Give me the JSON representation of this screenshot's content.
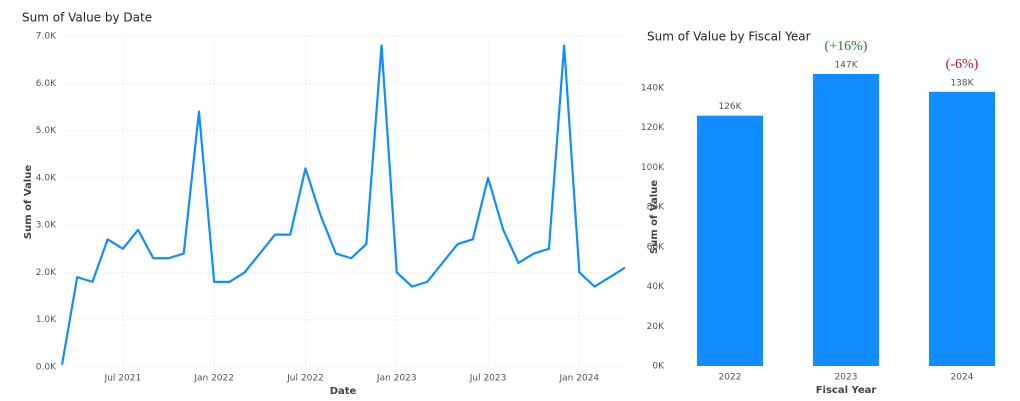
{
  "chart_data": [
    {
      "type": "line",
      "title": "Sum of Value by Date",
      "x_label": "Date",
      "y_label": "Sum of Value",
      "color": "#118dff",
      "grid": true,
      "x": [
        "2021-03",
        "2021-04",
        "2021-05",
        "2021-06",
        "2021-07",
        "2021-08",
        "2021-09",
        "2021-10",
        "2021-11",
        "2021-12",
        "2022-01",
        "2022-02",
        "2022-03",
        "2022-04",
        "2022-05",
        "2022-06",
        "2022-07",
        "2022-08",
        "2022-09",
        "2022-10",
        "2022-11",
        "2022-12",
        "2023-01",
        "2023-02",
        "2023-03",
        "2023-04",
        "2023-05",
        "2023-06",
        "2023-07",
        "2023-08",
        "2023-09",
        "2023-10",
        "2023-11",
        "2023-12",
        "2024-01",
        "2024-02",
        "2024-03",
        "2024-04"
      ],
      "values": [
        50,
        1900,
        1800,
        2700,
        2500,
        2900,
        2300,
        2300,
        2400,
        5400,
        1800,
        1800,
        2000,
        2400,
        2800,
        2800,
        4200,
        3200,
        2400,
        2300,
        2600,
        6800,
        2000,
        1700,
        1800,
        2200,
        2600,
        2700,
        4000,
        2900,
        2200,
        2400,
        2500,
        6800,
        2000,
        1700,
        1900,
        2100
      ],
      "xlim": [
        "2021-03",
        "2024-04"
      ],
      "xticks": [
        {
          "value": "2021-07",
          "label": "Jul 2021"
        },
        {
          "value": "2022-01",
          "label": "Jan 2022"
        },
        {
          "value": "2022-07",
          "label": "Jul 2022"
        },
        {
          "value": "2023-01",
          "label": "Jan 2023"
        },
        {
          "value": "2023-07",
          "label": "Jul 2023"
        },
        {
          "value": "2024-01",
          "label": "Jan 2024"
        }
      ],
      "ylim": [
        0,
        7000
      ],
      "yticks": [
        {
          "value": 0,
          "label": "0.0K"
        },
        {
          "value": 1000,
          "label": "1.0K"
        },
        {
          "value": 2000,
          "label": "2.0K"
        },
        {
          "value": 3000,
          "label": "3.0K"
        },
        {
          "value": 4000,
          "label": "4.0K"
        },
        {
          "value": 5000,
          "label": "5.0K"
        },
        {
          "value": 6000,
          "label": "6.0K"
        },
        {
          "value": 7000,
          "label": "7.0K"
        }
      ]
    },
    {
      "type": "bar",
      "title": "Sum of Value by Fiscal Year",
      "x_label": "Fiscal Year",
      "y_label": "Sum of Value",
      "color": "#118dff",
      "grid": false,
      "categories": [
        "2022",
        "2023",
        "2024"
      ],
      "values": [
        126000,
        147000,
        138000
      ],
      "value_labels": [
        "126K",
        "147K",
        "138K"
      ],
      "ylim": [
        0,
        150000
      ],
      "yticks": [
        {
          "value": 0,
          "label": "0K"
        },
        {
          "value": 20000,
          "label": "20K"
        },
        {
          "value": 40000,
          "label": "40K"
        },
        {
          "value": 60000,
          "label": "60K"
        },
        {
          "value": 80000,
          "label": "80K"
        },
        {
          "value": 100000,
          "label": "100K"
        },
        {
          "value": 120000,
          "label": "120K"
        },
        {
          "value": 140000,
          "label": "140K"
        }
      ],
      "annotations": [
        {
          "text": "(+16%)",
          "category": "2023",
          "color": "#1e7b2e"
        },
        {
          "text": "(-6%)",
          "category": "2024",
          "color": "#b3121b"
        }
      ]
    }
  ]
}
